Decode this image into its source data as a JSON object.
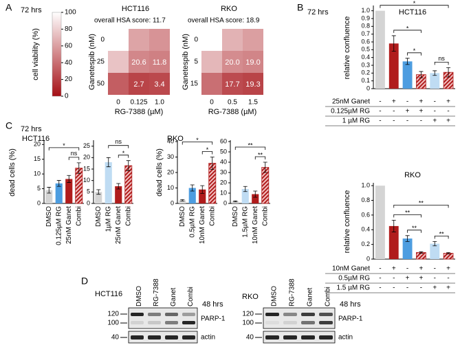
{
  "panel_labels": [
    "A",
    "B",
    "C",
    "D"
  ],
  "chart_data": [
    {
      "type": "colorbar",
      "title": "72 hrs",
      "label": "cell viability (%)",
      "lim": [
        0,
        100
      ],
      "ticks": [
        0,
        20,
        40,
        60,
        80,
        100
      ],
      "colors": [
        "#a50f15",
        "#ffffff"
      ]
    },
    {
      "type": "heatmap",
      "title": "HCT116",
      "subtitle": "overall HSA score: 11.7",
      "ylabel": "Ganetespib (nM)",
      "xlabel": "RG-7388 (µM)",
      "x": [
        "0",
        "0.125",
        "1.0"
      ],
      "y": [
        "0",
        "25",
        "50"
      ],
      "values": [
        [
          100,
          62,
          55
        ],
        [
          75,
          50,
          47
        ],
        [
          33,
          22,
          24
        ]
      ],
      "cell_labels": [
        [
          null,
          null,
          null
        ],
        [
          null,
          "20.6",
          "11.8"
        ],
        [
          null,
          "2.7",
          "3.4"
        ]
      ]
    },
    {
      "type": "heatmap",
      "title": "RKO",
      "subtitle": "overall HSA score: 18.9",
      "ylabel": "Ganetespib (nM)",
      "xlabel": "RG-7388 (µM)",
      "x": [
        "0",
        "0.5",
        "1.5"
      ],
      "y": [
        "0",
        "5",
        "15"
      ],
      "values": [
        [
          100,
          68,
          60
        ],
        [
          70,
          52,
          49
        ],
        [
          40,
          25,
          22
        ]
      ],
      "cell_labels": [
        [
          null,
          null,
          null
        ],
        [
          null,
          "20.0",
          "19.0"
        ],
        [
          null,
          "17.7",
          "19.3"
        ]
      ]
    },
    {
      "type": "bar",
      "annotation": "72 hrs",
      "title": "HCT116",
      "ylabel": "relative confluence",
      "ylim": [
        0,
        1.05
      ],
      "yticks": [
        0,
        0.1,
        0.2,
        0.3,
        0.4,
        0.5,
        0.6,
        0.7,
        0.8,
        0.9,
        {
          "value": 1,
          "label": "1.0"
        }
      ],
      "values": [
        1,
        0.58,
        0.35,
        0.18,
        0.2,
        0.21
      ],
      "errors": [
        0,
        0.1,
        0.04,
        0.04,
        0.03,
        0.06
      ],
      "colors": [
        "#d4d4d4",
        "#b01c1c",
        "#4d9de0",
        "#b01c1c",
        "#bfdcf3",
        "#b01c1c"
      ],
      "hatch": [
        false,
        false,
        false,
        true,
        false,
        true
      ],
      "treatments": [
        {
          "label": "25nM Ganet",
          "marks": [
            "-",
            "+",
            "-",
            "+",
            "-",
            "+"
          ]
        },
        {
          "label": "0.125µM RG",
          "marks": [
            "-",
            "-",
            "+",
            "+",
            "-",
            "-"
          ]
        },
        {
          "label": "1 µM RG",
          "marks": [
            "-",
            "-",
            "-",
            "-",
            "+",
            "+"
          ]
        }
      ],
      "brackets": [
        {
          "from": 4,
          "to": 5,
          "label": "ns"
        },
        {
          "from": 2,
          "to": 3,
          "label": "*"
        },
        {
          "from": 1,
          "to": 3,
          "label": "*"
        },
        {
          "from": 0,
          "to": 5,
          "label": "*"
        }
      ]
    },
    {
      "type": "bar",
      "title": "RKO",
      "ylabel": "relative confluence",
      "ylim": [
        0,
        1.02
      ],
      "yticks": [
        0,
        0.2,
        0.4,
        0.6,
        0.8,
        {
          "value": 1,
          "label": "1.0"
        }
      ],
      "values": [
        1,
        0.45,
        0.28,
        0.09,
        0.21,
        0.08
      ],
      "errors": [
        0,
        0.08,
        0.04,
        0.01,
        0.03,
        0.01
      ],
      "colors": [
        "#d4d4d4",
        "#b01c1c",
        "#4d9de0",
        "#b01c1c",
        "#bfdcf3",
        "#b01c1c"
      ],
      "hatch": [
        false,
        false,
        false,
        true,
        false,
        true
      ],
      "treatments": [
        {
          "label": "10nM Ganet",
          "marks": [
            "-",
            "+",
            "-",
            "+",
            "-",
            "+"
          ]
        },
        {
          "label": "0.5µM RG",
          "marks": [
            "-",
            "-",
            "+",
            "+",
            "-",
            "-"
          ]
        },
        {
          "label": "1.5 µM RG",
          "marks": [
            "-",
            "-",
            "-",
            "-",
            "+",
            "+"
          ]
        }
      ],
      "brackets": [
        {
          "from": 4,
          "to": 5,
          "label": "**"
        },
        {
          "from": 2,
          "to": 3,
          "label": "**"
        },
        {
          "from": 1,
          "to": 3,
          "label": "**"
        },
        {
          "from": 1,
          "to": 5,
          "label": "**"
        }
      ]
    },
    {
      "type": "bar",
      "annotation": "72 hrs",
      "title": "HCT116",
      "ylabel": "dead cells (%)",
      "ylim": [
        0,
        21
      ],
      "yticks": [
        0,
        5,
        10,
        15,
        20
      ],
      "categories": [
        "DMSO",
        "0.125µM RG",
        "25nM Ganet",
        "Combi"
      ],
      "values": [
        4.5,
        6.8,
        8.3,
        12
      ],
      "errors": [
        1,
        1,
        1.2,
        1.8
      ],
      "colors": [
        "#d4d4d4",
        "#4d9de0",
        "#b01c1c",
        "#b01c1c"
      ],
      "hatch": [
        false,
        false,
        false,
        true
      ],
      "brackets": [
        {
          "from": 2,
          "to": 3,
          "label": "ns"
        },
        {
          "from": 0,
          "to": 3,
          "label": "*"
        }
      ]
    },
    {
      "type": "bar",
      "ylim": [
        0,
        27
      ],
      "yticks": [
        0,
        5,
        10,
        15,
        20,
        25
      ],
      "categories": [
        "DMSO",
        "1µM RG",
        "25nM Ganet",
        "Combi"
      ],
      "values": [
        5,
        18,
        7.5,
        16.5
      ],
      "errors": [
        1,
        2,
        1.2,
        2.2
      ],
      "colors": [
        "#d4d4d4",
        "#bfdcf3",
        "#b01c1c",
        "#b01c1c"
      ],
      "hatch": [
        false,
        false,
        false,
        true
      ],
      "brackets": [
        {
          "from": 2,
          "to": 3,
          "label": "*"
        },
        {
          "from": 1,
          "to": 3,
          "label": "ns"
        }
      ]
    },
    {
      "type": "bar",
      "title": "RKO",
      "ylabel": "dead cells (%)",
      "ylim": [
        0,
        40
      ],
      "yticks": [
        0,
        10,
        20,
        30,
        40
      ],
      "categories": [
        "DMSO",
        "0.5µM RG",
        "10nM Ganet",
        "Combi"
      ],
      "values": [
        2,
        10,
        9,
        26
      ],
      "errors": [
        0.5,
        2,
        2.5,
        4
      ],
      "colors": [
        "#d4d4d4",
        "#4d9de0",
        "#b01c1c",
        "#b01c1c"
      ],
      "hatch": [
        false,
        false,
        false,
        true
      ],
      "brackets": [
        {
          "from": 2,
          "to": 3,
          "label": "*"
        },
        {
          "from": 0,
          "to": 3,
          "label": "*"
        }
      ]
    },
    {
      "type": "bar",
      "ylim": [
        0,
        60
      ],
      "yticks": [
        0,
        10,
        20,
        30,
        40,
        50,
        60
      ],
      "categories": [
        "DMSO",
        "1.5µM RG",
        "10nM Ganet",
        "Combi"
      ],
      "values": [
        2,
        14,
        9,
        35
      ],
      "errors": [
        0.5,
        2.5,
        3,
        5
      ],
      "colors": [
        "#d4d4d4",
        "#bfdcf3",
        "#b01c1c",
        "#b01c1c"
      ],
      "hatch": [
        false,
        false,
        false,
        true
      ],
      "brackets": [
        {
          "from": 2,
          "to": 3,
          "label": "**"
        },
        {
          "from": 0,
          "to": 3,
          "label": "**"
        }
      ]
    }
  ],
  "blots": [
    {
      "cell_line": "HCT116",
      "lanes": [
        "DMSO",
        "RG-7388",
        "Ganet",
        "Combi"
      ],
      "time": "48 hrs",
      "markers": [
        120,
        100,
        40
      ],
      "proteins": [
        "PARP-1",
        "actin"
      ]
    },
    {
      "cell_line": "RKO",
      "lanes": [
        "DMSO",
        "RG-7388",
        "Ganet",
        "Combi"
      ],
      "time": "48 hrs",
      "markers": [
        120,
        100,
        40
      ],
      "proteins": [
        "PARP-1",
        "actin"
      ]
    }
  ]
}
